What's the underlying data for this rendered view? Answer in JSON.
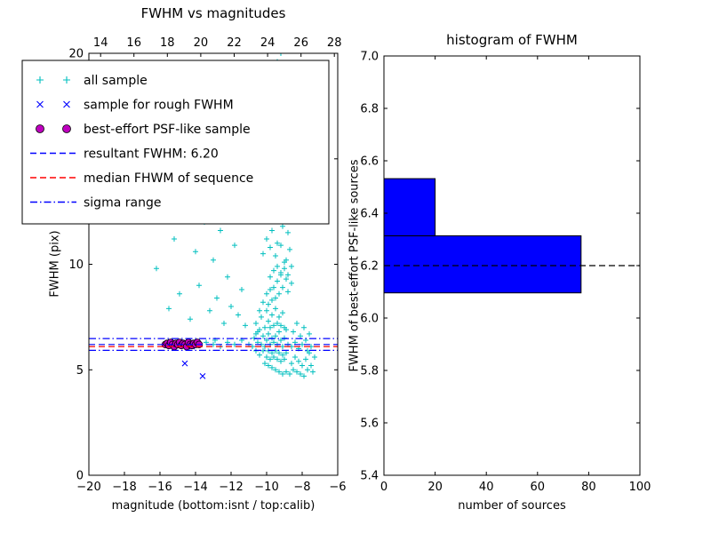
{
  "figure": {
    "background": "#ffffff"
  },
  "chart_data": [
    {
      "type": "scatter",
      "title": "FWHM vs magnitudes",
      "xlabel": "magnitude (bottom:isnt / top:calib)",
      "ylabel": "FWHM (pix)",
      "xlim": [
        -20,
        -6
      ],
      "top_xlim": [
        13.3,
        28.2
      ],
      "ylim": [
        0,
        20
      ],
      "grid": false,
      "xticks": {
        "values": [
          -20,
          -18,
          -16,
          -14,
          -12,
          -10,
          -8,
          -6
        ],
        "labels": [
          "−20",
          "−18",
          "−16",
          "−14",
          "−12",
          "−10",
          "−8",
          "−6"
        ]
      },
      "top_xticks": {
        "values": [
          14,
          16,
          18,
          20,
          22,
          24,
          26,
          28
        ],
        "labels": [
          "14",
          "16",
          "18",
          "20",
          "22",
          "24",
          "26",
          "28"
        ]
      },
      "yticks": {
        "values": [
          0,
          5,
          10,
          15,
          20
        ],
        "labels": [
          "0",
          "5",
          "10",
          "15",
          "20"
        ]
      },
      "series": {
        "all_sample": {
          "name": "all sample",
          "marker": "plus",
          "color": "#00bfbf",
          "x": [
            -10.8,
            -10.7,
            -10.6,
            -10.6,
            -10.5,
            -10.5,
            -10.4,
            -10.4,
            -10.3,
            -10.3,
            -10.2,
            -10.2,
            -10.1,
            -10.1,
            -10,
            -10,
            -10,
            -9.9,
            -9.9,
            -9.9,
            -9.8,
            -9.8,
            -9.8,
            -9.7,
            -9.7,
            -9.7,
            -9.6,
            -9.6,
            -9.6,
            -9.5,
            -9.5,
            -9.5,
            -9.4,
            -9.4,
            -9.4,
            -9.3,
            -9.3,
            -9.3,
            -9.2,
            -9.2,
            -9.2,
            -9.1,
            -9.1,
            -9.1,
            -9,
            -9,
            -9,
            -8.9,
            -8.9,
            -8.8,
            -10.6,
            -10.4,
            -10.2,
            -10,
            -9.9,
            -9.8,
            -9.7,
            -9.6,
            -9.5,
            -9.4,
            -9.3,
            -9.2,
            -9.1,
            -9,
            -8.9,
            -8.8,
            -10.1,
            -9.9,
            -9.7,
            -9.5,
            -9.3,
            -9.1,
            -8.9,
            -8.7,
            -8.6,
            -8.5,
            -8.4,
            -8.3,
            -8.2,
            -8.1,
            -8,
            -7.9,
            -7.8,
            -7.7,
            -7.6,
            -7.5,
            -7.4,
            -7.3,
            -8.6,
            -8.5,
            -8.4,
            -8.3,
            -8.2,
            -8.1,
            -8,
            -7.9,
            -7.8,
            -7.7,
            -7.6,
            -7.5,
            -10.2,
            -10,
            -9.9,
            -9.8,
            -9.8,
            -9.7,
            -9.7,
            -9.6,
            -9.6,
            -9.5,
            -9.5,
            -9.5,
            -9.4,
            -9.4,
            -9.4,
            -9.3,
            -9.3,
            -9.3,
            -9.2,
            -9.2,
            -9.2,
            -9.1,
            -9.1,
            -9,
            -9,
            -8.9,
            -8.9,
            -8.8,
            -8.7,
            -8.6,
            -9.6,
            -9.5,
            -9.4,
            -9.8,
            -9.6,
            -9.4,
            -9.2,
            -9,
            -8.8,
            -8.6,
            -16.2,
            -15.8,
            -15.5,
            -15.2,
            -14.9,
            -14.6,
            -14.3,
            -14,
            -13.8,
            -13.5,
            -13.2,
            -13,
            -12.8,
            -12.6,
            -12.4,
            -12.2,
            -12,
            -11.8,
            -11.6,
            -11.4,
            -11.2,
            -12.1,
            -13.4,
            -13,
            -12.6,
            -12.2,
            -11.8,
            -11.4,
            -11,
            -12.9
          ],
          "y": [
            6.1,
            6.5,
            5.9,
            7.2,
            6.3,
            6.8,
            5.7,
            6.9,
            6.2,
            7.5,
            5.9,
            6.6,
            6.1,
            7,
            5.6,
            6.4,
            7.8,
            5.9,
            6.7,
            7.3,
            5.5,
            6.2,
            7,
            5.8,
            6.5,
            7.6,
            5.6,
            6.3,
            7.1,
            5.9,
            6.6,
            7.9,
            5.5,
            6.2,
            7.2,
            5.8,
            6.8,
            7.5,
            5.4,
            6.4,
            7.1,
            5.7,
            6.1,
            7.7,
            5.5,
            6.5,
            7,
            5.8,
            6.9,
            6.2,
            6.7,
            7.8,
            8.2,
            8.6,
            8.1,
            8.8,
            8.3,
            8.9,
            8.4,
            9.2,
            8.6,
            9.5,
            8.9,
            9.8,
            9.3,
            8.7,
            5.3,
            5.2,
            5.1,
            5,
            4.9,
            4.8,
            4.9,
            4.8,
            5.3,
            5,
            5.6,
            4.9,
            5.4,
            4.8,
            5.2,
            4.7,
            5.5,
            5,
            5.8,
            5.2,
            4.9,
            5.6,
            6.1,
            6.8,
            6.3,
            7.2,
            6,
            6.6,
            6.2,
            7,
            6.4,
            5.9,
            6.7,
            6.1,
            10.5,
            11.2,
            12.6,
            10.8,
            13.5,
            11.6,
            14.8,
            12.2,
            16.5,
            10.4,
            13,
            17.8,
            11,
            14.2,
            19.6,
            12.8,
            15.6,
            18.4,
            10.9,
            13.8,
            20,
            11.8,
            16,
            12.4,
            14.9,
            10.2,
            13.2,
            11.5,
            10.7,
            9.9,
            19.2,
            15.2,
            17,
            9.4,
            9.7,
            9.9,
            9.6,
            10.1,
            9.5,
            9.1,
            9.8,
            12.5,
            7.9,
            11.2,
            8.6,
            13.4,
            7.4,
            10.6,
            9,
            12,
            7.8,
            10.2,
            8.4,
            11.6,
            7.2,
            9.4,
            8,
            10.9,
            7.6,
            8.8,
            7.1,
            13,
            6.3,
            6.2,
            6.1,
            6.3,
            6.2,
            6.4,
            6.2,
            6.4
          ]
        },
        "rough_fwhm": {
          "name": "sample for rough FWHM",
          "marker": "x",
          "color": "#0000ff",
          "x": [
            -15.6,
            -15.4,
            -15.2,
            -15,
            -14.8,
            -14.6,
            -14.4,
            -14.2,
            -14,
            -13.9,
            -14.6,
            -13.6
          ],
          "y": [
            6.2,
            6.3,
            6.1,
            6.25,
            6.15,
            6.3,
            6.2,
            6.1,
            6.25,
            6.2,
            5.3,
            4.7
          ]
        },
        "psf_like": {
          "name": "best-effort PSF-like sample",
          "marker": "circle",
          "color": "#bf00bf",
          "edge": "#000000",
          "x": [
            -15.7,
            -15.6,
            -15.5,
            -15.4,
            -15.3,
            -15.2,
            -15.1,
            -15,
            -14.9,
            -14.8,
            -14.7,
            -14.6,
            -14.5,
            -14.4,
            -14.3,
            -14.2,
            -14.1,
            -14,
            -13.9,
            -13.8
          ],
          "y": [
            6.2,
            6.25,
            6.15,
            6.3,
            6.2,
            6.1,
            6.25,
            6.2,
            6.3,
            6.15,
            6.25,
            6.2,
            6.1,
            6.3,
            6.2,
            6.15,
            6.25,
            6.2,
            6.3,
            6.2
          ]
        }
      },
      "lines": [
        {
          "name": "resultant-fwhm",
          "value": 6.2,
          "y": [
            6.2
          ],
          "color": "#0000ff",
          "style": "dashed"
        },
        {
          "name": "median-fwhm",
          "y": [
            6.1
          ],
          "color": "#ff0000",
          "style": "dashed"
        },
        {
          "name": "sigma-range",
          "y": [
            5.92,
            6.48
          ],
          "color": "#0000ff",
          "style": "dashdot"
        }
      ],
      "legend": {
        "position": "upper left",
        "items": [
          {
            "marker": "plus",
            "color": "#00bfbf",
            "label": "all sample"
          },
          {
            "marker": "x",
            "color": "#0000ff",
            "label": "sample for rough FWHM"
          },
          {
            "marker": "circle",
            "color": "#bf00bf",
            "label": "best-effort PSF-like sample"
          },
          {
            "marker": "dashed",
            "color": "#0000ff",
            "label": "resultant FWHM: 6.20"
          },
          {
            "marker": "dashed",
            "color": "#ff0000",
            "label": "median FHWM of sequence"
          },
          {
            "marker": "dashdot",
            "color": "#0000ff",
            "label": "sigma range"
          }
        ]
      }
    },
    {
      "type": "histogram-horizontal",
      "title": "histogram of FWHM",
      "xlabel": "number of sources",
      "ylabel": "FWHM of best-effort PSF-like sources",
      "xlim": [
        0,
        100
      ],
      "ylim": [
        5.4,
        7.0
      ],
      "grid": false,
      "xticks": {
        "values": [
          0,
          20,
          40,
          60,
          80,
          100
        ],
        "labels": [
          "0",
          "20",
          "40",
          "60",
          "80",
          "100"
        ]
      },
      "yticks": {
        "values": [
          5.4,
          5.6,
          5.8,
          6.0,
          6.2,
          6.4,
          6.6,
          6.8,
          7.0
        ],
        "labels": [
          "5.4",
          "5.6",
          "5.8",
          "6.0",
          "6.2",
          "6.4",
          "6.6",
          "6.8",
          "7.0"
        ]
      },
      "bar_color": "#0000ff",
      "bar_edge_color": "#000000",
      "bins": [
        {
          "from": 6.096,
          "to": 6.314,
          "count": 77
        },
        {
          "from": 6.314,
          "to": 6.532,
          "count": 20
        }
      ],
      "dashed_line_y": 6.2,
      "dashed_line_color": "#000000"
    }
  ]
}
